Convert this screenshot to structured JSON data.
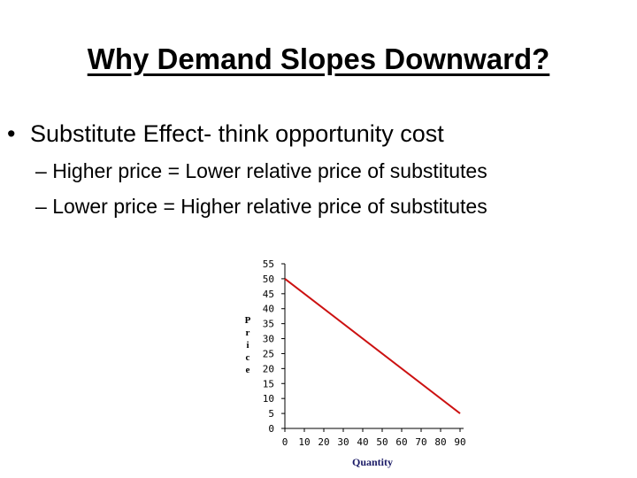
{
  "slide": {
    "title": "Why Demand Slopes Downward?",
    "bullet_main": "Substitute Effect- think opportunity cost",
    "bullet_marker": "•",
    "sub_marker": "–",
    "sub_bullets": [
      "Higher price = Lower relative price of substitutes",
      "Lower price = Higher relative price of substitutes"
    ]
  },
  "chart_data": {
    "type": "line",
    "ylabel_letters": [
      "P",
      "r",
      "i",
      "c",
      "e"
    ],
    "xlabel": "Quantity",
    "x_ticks": [
      0,
      10,
      20,
      30,
      40,
      50,
      60,
      70,
      80,
      90
    ],
    "y_ticks": [
      0,
      5,
      10,
      15,
      20,
      25,
      30,
      35,
      40,
      45,
      50,
      55
    ],
    "xlim": [
      0,
      90
    ],
    "ylim": [
      0,
      55
    ],
    "grid": false,
    "line_color": "#cc1111",
    "series": [
      {
        "x": [
          0,
          90
        ],
        "y": [
          50,
          5
        ]
      }
    ]
  }
}
